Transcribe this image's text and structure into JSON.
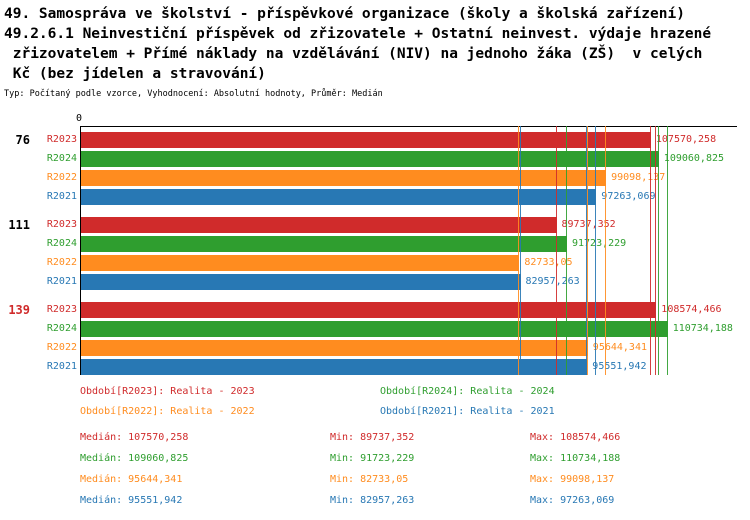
{
  "header": {
    "line1": "49. Samospráva ve školství - příspěvkové organizace (školy a školská zařízení)",
    "line2": "49.2.6.1 Neinvestiční příspěvek od zřizovatele + Ostatní neinvest. výdaje hrazené",
    "line3": " zřizovatelem + Přímé náklady na vzdělávání (NIV) na jednoho žáka (ZŠ)  v celých",
    "line4": " Kč (bez jídelen a stravování)",
    "meta": "Typ: Počítaný podle vzorce, Vyhodnocení: Absolutní hodnoty, Průměr: Medián"
  },
  "colors": {
    "r2023": "#d02b2b",
    "r2024": "#2f9e2f",
    "r2022": "#ff8c1f",
    "r2021": "#2878b4",
    "axis": "#000000"
  },
  "chart_data": {
    "type": "bar",
    "orientation": "horizontal",
    "x_origin_label": "0",
    "xlim": [
      0,
      124000
    ],
    "grid": false,
    "series_order": [
      "R2023",
      "R2024",
      "R2022",
      "R2021"
    ],
    "groups": [
      {
        "label": "76",
        "label_color": "#000000",
        "bars": [
          {
            "series": "R2023",
            "value": 107570.258,
            "value_label": "107570,258"
          },
          {
            "series": "R2024",
            "value": 109060.825,
            "value_label": "109060,825"
          },
          {
            "series": "R2022",
            "value": 99098.137,
            "value_label": "99098,137"
          },
          {
            "series": "R2021",
            "value": 97263.069,
            "value_label": "97263,069"
          }
        ]
      },
      {
        "label": "111",
        "label_color": "#000000",
        "bars": [
          {
            "series": "R2023",
            "value": 89737.352,
            "value_label": "89737,352"
          },
          {
            "series": "R2024",
            "value": 91723.229,
            "value_label": "91723,229"
          },
          {
            "series": "R2022",
            "value": 82733.05,
            "value_label": "82733,05"
          },
          {
            "series": "R2021",
            "value": 82957.263,
            "value_label": "82957,263"
          }
        ]
      },
      {
        "label": "139",
        "label_color": "#d02b2b",
        "bars": [
          {
            "series": "R2023",
            "value": 108574.466,
            "value_label": "108574,466"
          },
          {
            "series": "R2024",
            "value": 110734.188,
            "value_label": "110734,188"
          },
          {
            "series": "R2022",
            "value": 95644.341,
            "value_label": "95644,341"
          },
          {
            "series": "R2021",
            "value": 95551.942,
            "value_label": "95551,942"
          }
        ]
      }
    ],
    "markers": {
      "R2023": {
        "min": 89737.352,
        "median": 107570.258,
        "max": 108574.466
      },
      "R2024": {
        "min": 91723.229,
        "median": 109060.825,
        "max": 110734.188
      },
      "R2022": {
        "min": 82733.05,
        "median": 95644.341,
        "max": 99098.137
      },
      "R2021": {
        "min": 82957.263,
        "median": 95551.942,
        "max": 97263.069
      }
    }
  },
  "legend": [
    {
      "series": "R2023",
      "text": "Období[R2023]: Realita - 2023"
    },
    {
      "series": "R2024",
      "text": "Období[R2024]: Realita - 2024"
    },
    {
      "series": "R2022",
      "text": "Období[R2022]: Realita - 2022"
    },
    {
      "series": "R2021",
      "text": "Období[R2021]: Realita - 2021"
    }
  ],
  "stats": [
    {
      "series": "R2023",
      "median": "Medián: 107570,258",
      "min": "Min: 89737,352",
      "max": "Max: 108574,466"
    },
    {
      "series": "R2024",
      "median": "Medián: 109060,825",
      "min": "Min: 91723,229",
      "max": "Max: 110734,188"
    },
    {
      "series": "R2022",
      "median": "Medián: 95644,341",
      "min": "Min: 82733,05",
      "max": "Max: 99098,137"
    },
    {
      "series": "R2021",
      "median": "Medián: 95551,942",
      "min": "Min: 82957,263",
      "max": "Max: 97263,069"
    }
  ]
}
